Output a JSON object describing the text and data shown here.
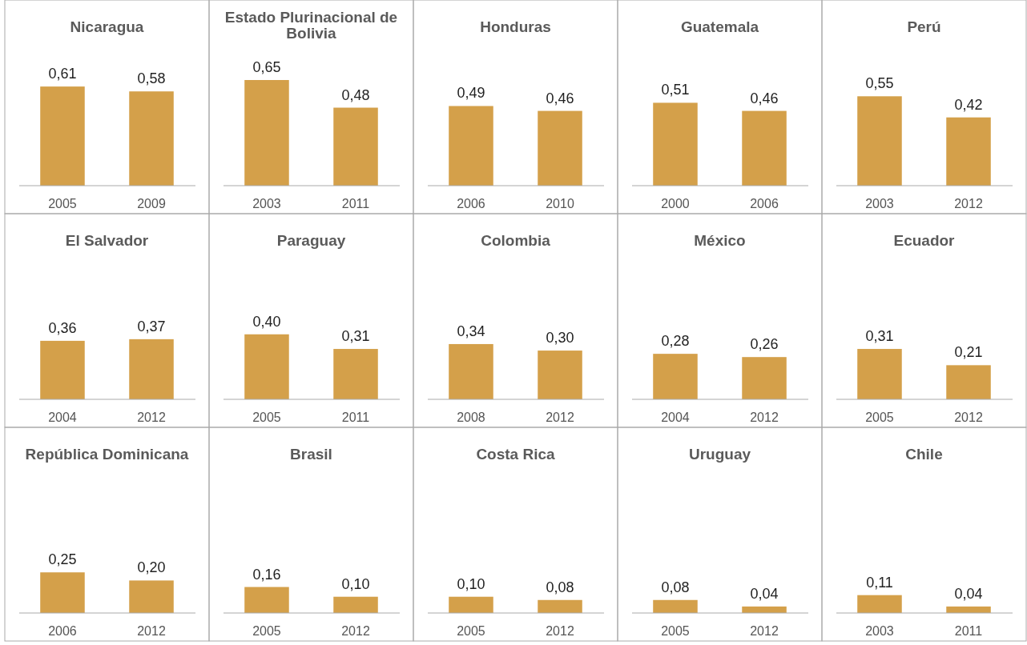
{
  "chart_data": [
    {
      "type": "bar",
      "title": "Nicaragua",
      "categories": [
        "2005",
        "2009"
      ],
      "values": [
        0.61,
        0.58
      ],
      "value_labels": [
        "0,61",
        "0,58"
      ],
      "color": "#d4a04a"
    },
    {
      "type": "bar",
      "title": "Estado Plurinacional de Bolivia",
      "categories": [
        "2003",
        "2011"
      ],
      "values": [
        0.65,
        0.48
      ],
      "value_labels": [
        "0,65",
        "0,48"
      ],
      "color": "#d4a04a"
    },
    {
      "type": "bar",
      "title": "Honduras",
      "categories": [
        "2006",
        "2010"
      ],
      "values": [
        0.49,
        0.46
      ],
      "value_labels": [
        "0,49",
        "0,46"
      ],
      "color": "#d4a04a"
    },
    {
      "type": "bar",
      "title": "Guatemala",
      "categories": [
        "2000",
        "2006"
      ],
      "values": [
        0.51,
        0.46
      ],
      "value_labels": [
        "0,51",
        "0,46"
      ],
      "color": "#d4a04a"
    },
    {
      "type": "bar",
      "title": "Perú",
      "categories": [
        "2003",
        "2012"
      ],
      "values": [
        0.55,
        0.42
      ],
      "value_labels": [
        "0,55",
        "0,42"
      ],
      "color": "#d4a04a"
    },
    {
      "type": "bar",
      "title": "El Salvador",
      "categories": [
        "2004",
        "2012"
      ],
      "values": [
        0.36,
        0.37
      ],
      "value_labels": [
        "0,36",
        "0,37"
      ],
      "color": "#d4a04a"
    },
    {
      "type": "bar",
      "title": "Paraguay",
      "categories": [
        "2005",
        "2011"
      ],
      "values": [
        0.4,
        0.31
      ],
      "value_labels": [
        "0,40",
        "0,31"
      ],
      "color": "#d4a04a"
    },
    {
      "type": "bar",
      "title": "Colombia",
      "categories": [
        "2008",
        "2012"
      ],
      "values": [
        0.34,
        0.3
      ],
      "value_labels": [
        "0,34",
        "0,30"
      ],
      "color": "#d4a04a"
    },
    {
      "type": "bar",
      "title": "México",
      "categories": [
        "2004",
        "2012"
      ],
      "values": [
        0.28,
        0.26
      ],
      "value_labels": [
        "0,28",
        "0,26"
      ],
      "color": "#d4a04a"
    },
    {
      "type": "bar",
      "title": "Ecuador",
      "categories": [
        "2005",
        "2012"
      ],
      "values": [
        0.31,
        0.21
      ],
      "value_labels": [
        "0,31",
        "0,21"
      ],
      "color": "#d4a04a"
    },
    {
      "type": "bar",
      "title": "República Dominicana",
      "categories": [
        "2006",
        "2012"
      ],
      "values": [
        0.25,
        0.2
      ],
      "value_labels": [
        "0,25",
        "0,20"
      ],
      "color": "#d4a04a"
    },
    {
      "type": "bar",
      "title": "Brasil",
      "categories": [
        "2005",
        "2012"
      ],
      "values": [
        0.16,
        0.1
      ],
      "value_labels": [
        "0,16",
        "0,10"
      ],
      "color": "#d4a04a"
    },
    {
      "type": "bar",
      "title": "Costa Rica",
      "categories": [
        "2005",
        "2012"
      ],
      "values": [
        0.1,
        0.08
      ],
      "value_labels": [
        "0,10",
        "0,08"
      ],
      "color": "#d4a04a"
    },
    {
      "type": "bar",
      "title": "Uruguay",
      "categories": [
        "2005",
        "2012"
      ],
      "values": [
        0.08,
        0.04
      ],
      "value_labels": [
        "0,08",
        "0,04"
      ],
      "color": "#d4a04a"
    },
    {
      "type": "bar",
      "title": "Chile",
      "categories": [
        "2003",
        "2011"
      ],
      "values": [
        0.11,
        0.04
      ],
      "value_labels": [
        "0,11",
        "0,04"
      ],
      "color": "#d4a04a"
    }
  ]
}
